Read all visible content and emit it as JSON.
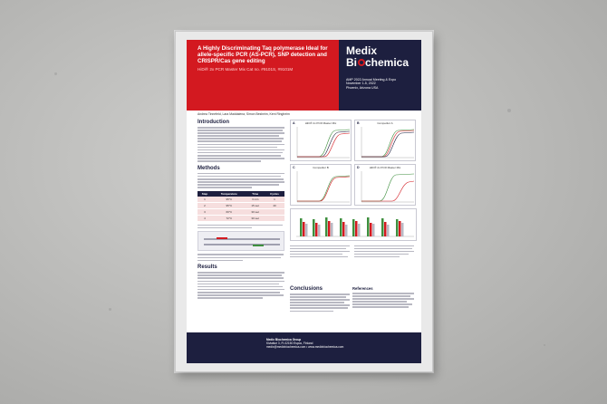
{
  "poster": {
    "title": "A Highly Discriminating Taq polymerase Ideal for allele-specific PCR (AS-PCR), SNP detection and CRISPR/Cas gene editing",
    "subtitle": "HiDi® 2x PCR Master Mix Cat no. #9101S, #9101M",
    "authors": "Andrea Tinnefeld, Lara Maddalena, Simon Besheim, Kent Ringheim",
    "brand": {
      "line1": "Medix",
      "line2_a": "Bi",
      "line2_b": "chemica"
    },
    "event": [
      "AMP 2022 Annual Meeting & Expo",
      "November 1-5, 2022",
      "Phoenix, Arizona USA"
    ],
    "sections": {
      "introduction": "Introduction",
      "methods": "Methods",
      "results": "Results",
      "conclusions": "Conclusions",
      "references": "References"
    },
    "table": {
      "headers": [
        "Step",
        "Temperature",
        "Time",
        "Cycles"
      ],
      "rows": [
        [
          "1",
          "95°C",
          "3 min",
          "1"
        ],
        [
          "2",
          "95°C",
          "15 sec",
          "40"
        ],
        [
          "3",
          "60°C",
          "30 sec",
          ""
        ],
        [
          "4",
          "72°C",
          "30 sec",
          ""
        ]
      ]
    },
    "figure_panels": [
      {
        "label": "A",
        "title": "HiDi® 2x PCR Master Mix"
      },
      {
        "label": "B",
        "title": "Competitor A"
      },
      {
        "label": "C",
        "title": "Competitor B"
      },
      {
        "label": "D",
        "title": "HiDi® 2x PCR Master Mix"
      }
    ],
    "footer": {
      "company": "Medix Biochemica Group",
      "address": "Kiviaituri 3, FI-02150 Espoo, Finland",
      "web": "medix@medixbiochemica.com  •  www.medixbiochemica.com"
    },
    "colors": {
      "red": "#d31920",
      "navy": "#1d1f3f",
      "green": "#3e8f3e"
    }
  }
}
